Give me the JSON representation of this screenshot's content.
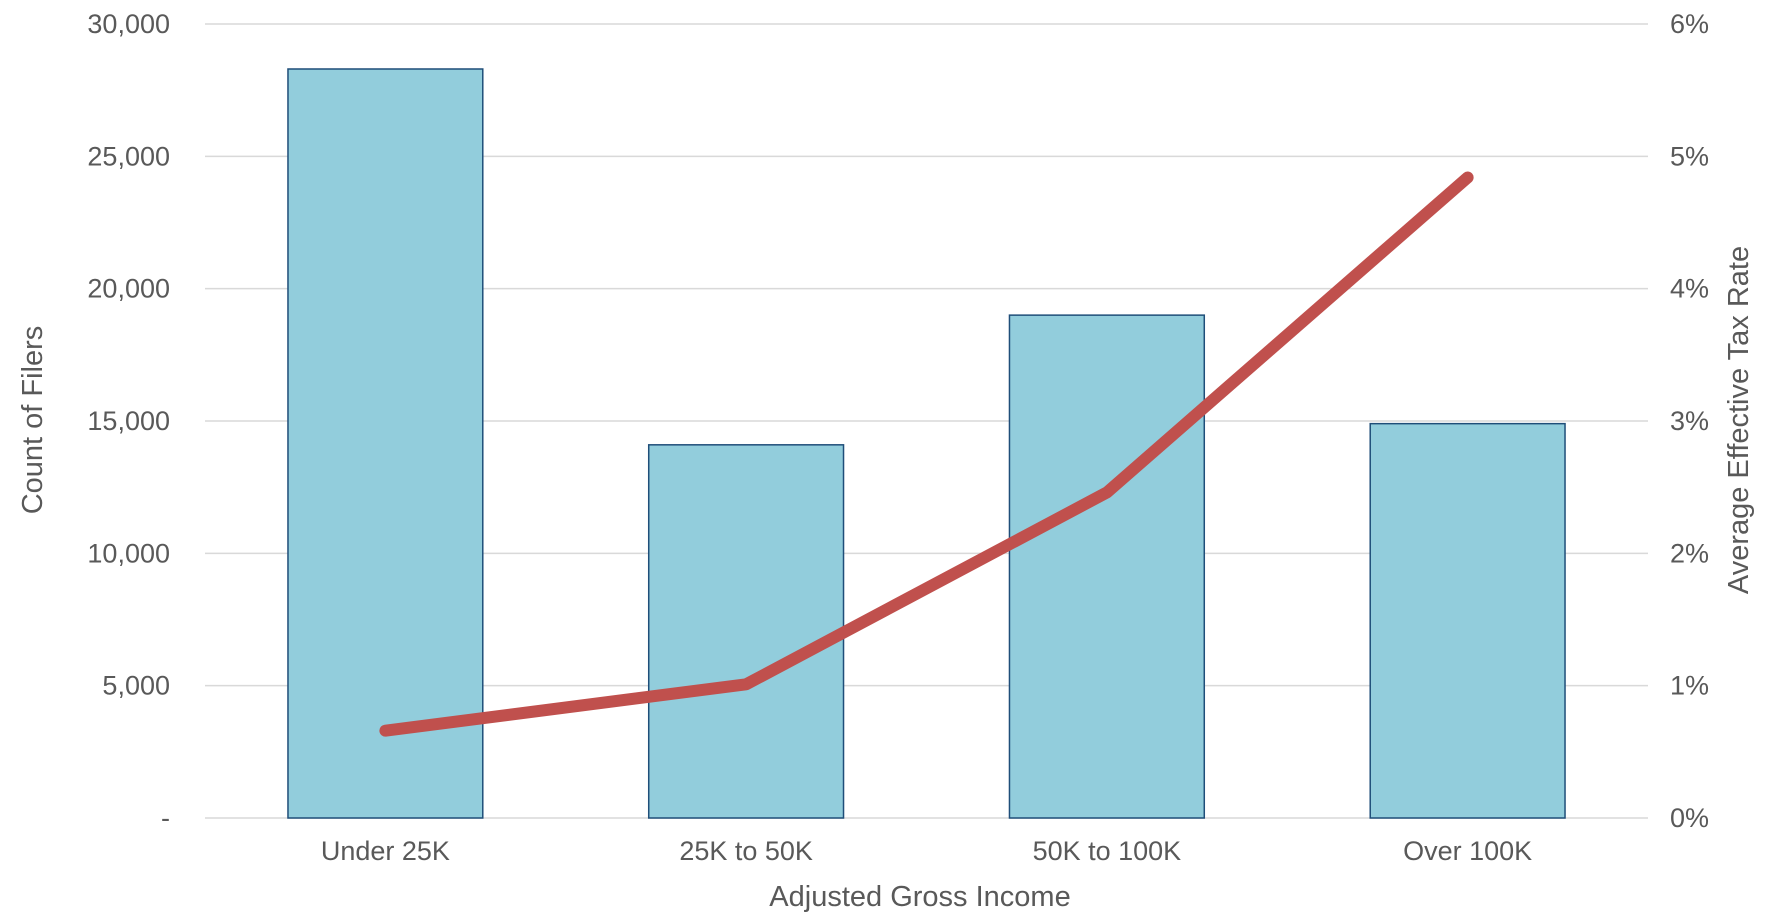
{
  "chart_data": {
    "type": "bar",
    "categories": [
      "Under 25K",
      "25K to 50K",
      "50K to 100K",
      "Over 100K"
    ],
    "series": [
      {
        "name": "",
        "type": "bar",
        "axis": "left",
        "values": [
          28300,
          14100,
          19000,
          14900
        ]
      },
      {
        "name": "",
        "type": "line",
        "axis": "right",
        "values": [
          0.66,
          1.01,
          2.46,
          4.84
        ]
      }
    ],
    "xlabel": "Adjusted Gross Income",
    "ylabel": "Count of Filers",
    "y2label": "Average Effective Tax Rate",
    "ylim": [
      0,
      30000
    ],
    "y2lim": [
      0,
      6
    ],
    "yticks": [
      "-",
      "5,000",
      "10,000",
      "15,000",
      "20,000",
      "25,000",
      "30,000"
    ],
    "y2ticks": [
      "0%",
      "1%",
      "2%",
      "3%",
      "4%",
      "5%",
      "6%"
    ],
    "grid": true,
    "legend": "none",
    "colors": {
      "bar_fill": "#92CDDC",
      "bar_stroke": "#1F4E79",
      "line": "#C0504D",
      "grid": "#D9D9D9",
      "text": "#595959"
    }
  }
}
